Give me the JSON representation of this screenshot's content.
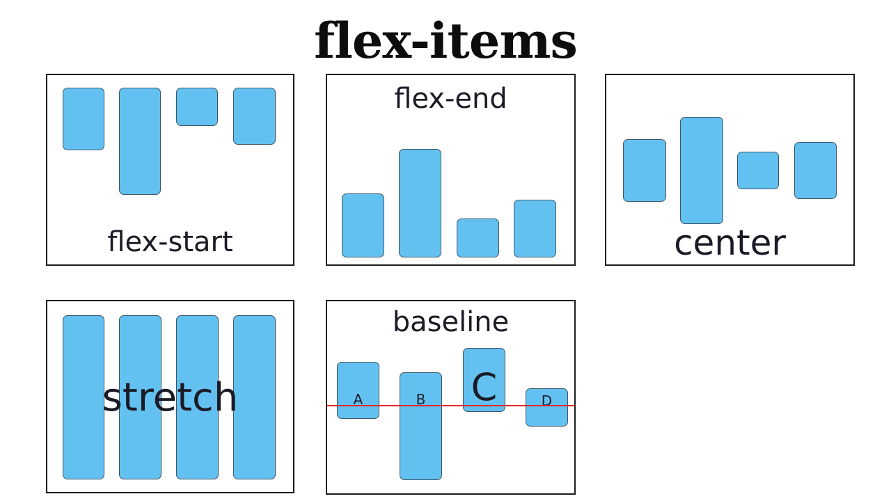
{
  "title": "flex-items",
  "panels": {
    "flex_start": {
      "label": "flex-start"
    },
    "flex_end": {
      "label": "flex-end"
    },
    "center": {
      "label": "center"
    },
    "stretch": {
      "label": "stretch"
    },
    "baseline": {
      "label": "baseline",
      "items": [
        "A",
        "B",
        "C",
        "D"
      ]
    }
  },
  "colors": {
    "item_fill": "#63c1f1",
    "item_border": "#3f5565",
    "baseline_line": "#e22a2a",
    "text": "#1b1b26"
  }
}
